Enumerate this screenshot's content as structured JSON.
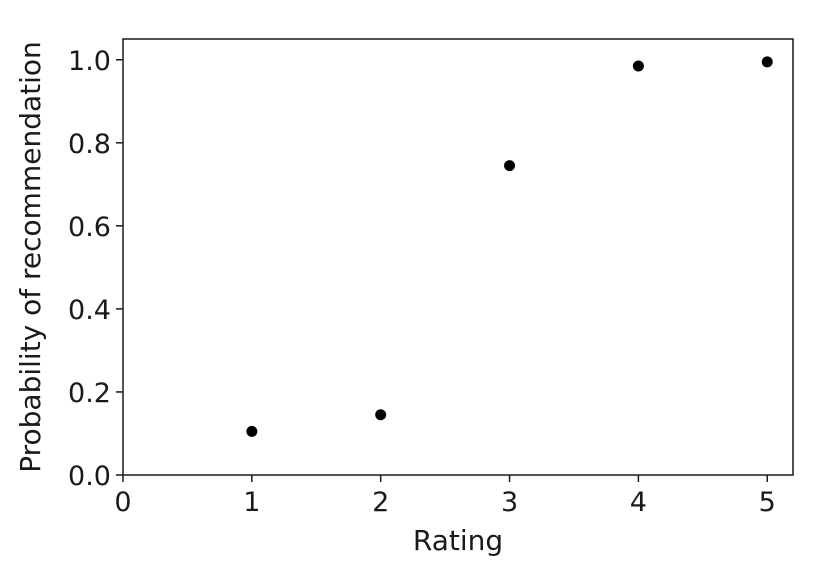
{
  "chart_data": {
    "type": "scatter",
    "title": "",
    "xlabel": "Rating",
    "ylabel": "Probability of recommendation",
    "x": [
      1,
      2,
      3,
      4,
      5
    ],
    "y": [
      0.105,
      0.145,
      0.745,
      0.985,
      0.995
    ],
    "xlim": [
      0,
      5.2
    ],
    "ylim": [
      0,
      1.05
    ],
    "xticks": [
      0,
      1,
      2,
      3,
      4,
      5
    ],
    "xtick_labels": [
      "0",
      "1",
      "2",
      "3",
      "4",
      "5"
    ],
    "yticks": [
      0.0,
      0.2,
      0.4,
      0.6,
      0.8,
      1.0
    ],
    "ytick_labels": [
      "0.0",
      "0.2",
      "0.4",
      "0.6",
      "0.8",
      "1.0"
    ],
    "grid": false,
    "marker_color": "#000000"
  }
}
